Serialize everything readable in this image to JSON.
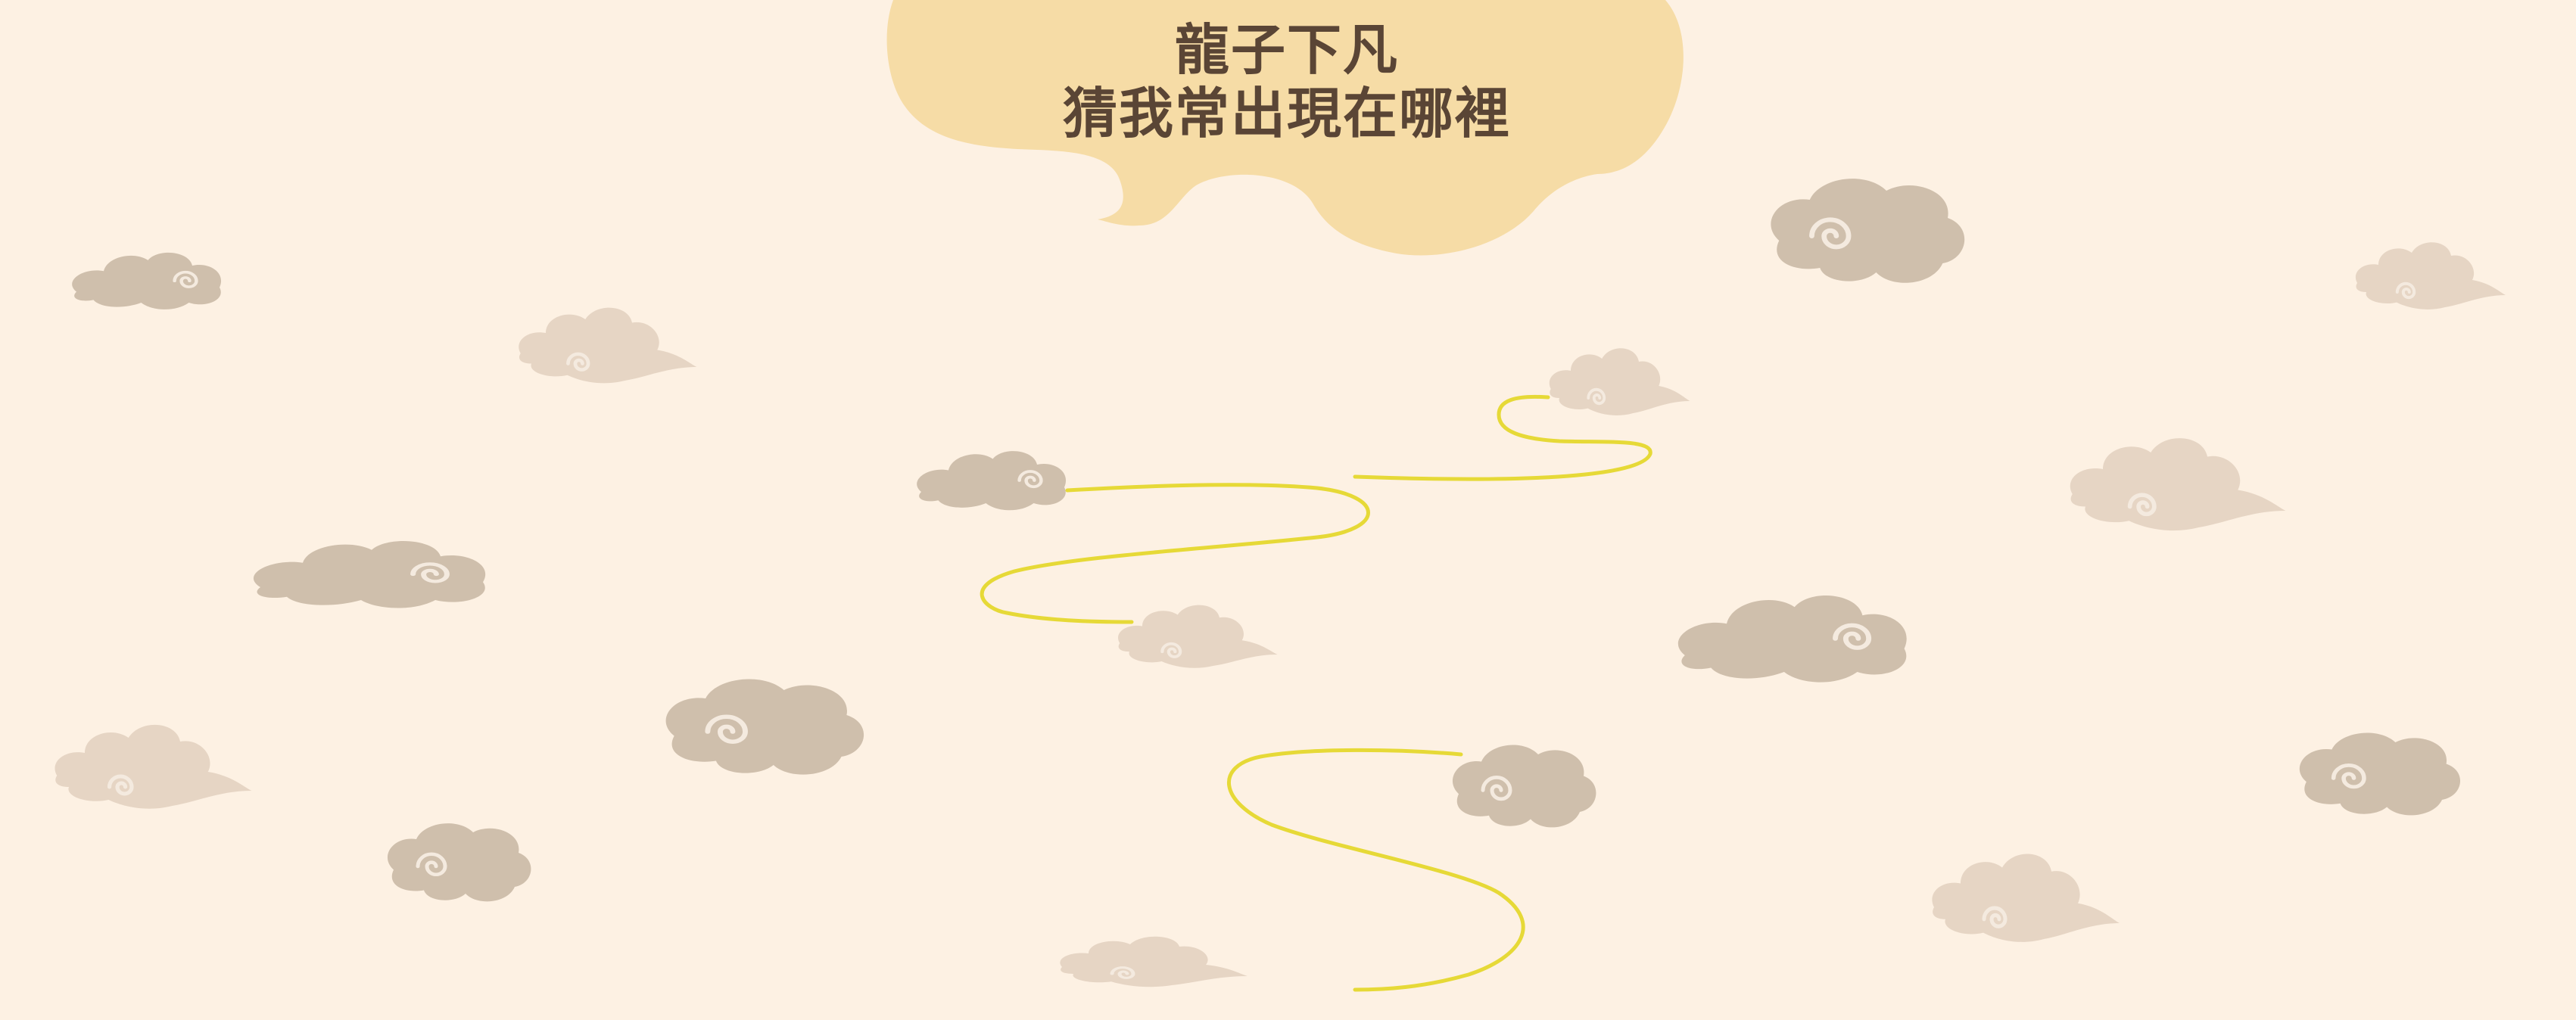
{
  "speech_bubble": {
    "line1": "龍子下凡",
    "line2": "猜我常出現在哪裡"
  },
  "colors": {
    "background": "#fdf1e3",
    "bubble": "#f6dca6",
    "cloud_dark": "#cfbfac",
    "cloud_light": "#e6d5c4",
    "swirl": "#f4eadf",
    "trail": "#e6d937",
    "text": "#5a4535"
  },
  "icons": [
    "cloud-icon",
    "dragon-trail-path"
  ]
}
